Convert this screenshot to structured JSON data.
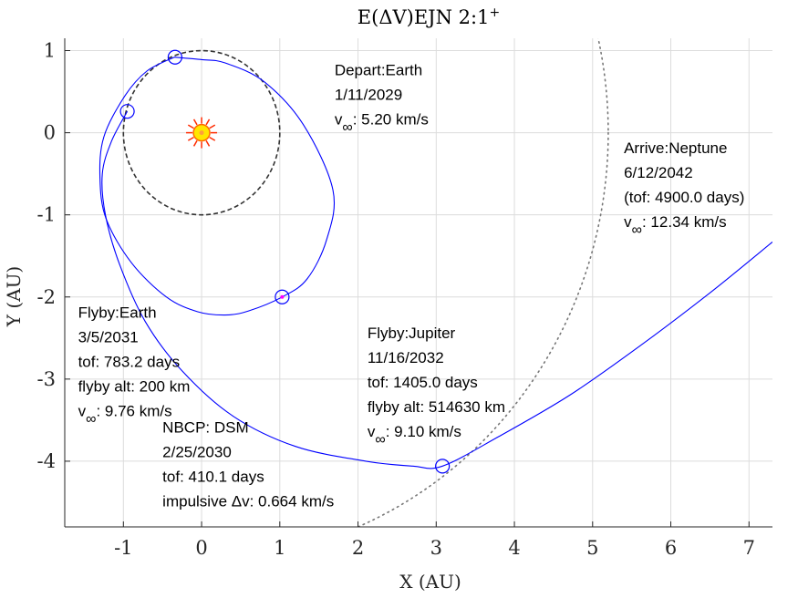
{
  "chart_data": {
    "type": "line",
    "title": "E(ΔV)EJN 2:1",
    "title_superscript": "+",
    "xlabel": "X (AU)",
    "ylabel": "Y (AU)",
    "xlim": [
      -1.75,
      7.3
    ],
    "ylim": [
      -4.8,
      1.15
    ],
    "xticks": [
      -1,
      0,
      1,
      2,
      3,
      4,
      5,
      6,
      7
    ],
    "yticks": [
      -4,
      -3,
      -2,
      -1,
      0,
      1
    ],
    "xticklabels": [
      "-1",
      "0",
      "1",
      "2",
      "3",
      "4",
      "5",
      "6",
      "7"
    ],
    "yticklabels": [
      "-4",
      "-3",
      "-2",
      "-1",
      "0",
      "1"
    ],
    "grid": true,
    "sun": {
      "x": 0,
      "y": 0
    },
    "earth_orbit": {
      "radius": 1.0,
      "style": "dashed",
      "color": "#333333"
    },
    "jupiter_orbit": {
      "radius": 5.2,
      "style": "dotted",
      "color": "#777777"
    },
    "trajectory_color": "#0000ff",
    "trajectory_leg1": [
      [
        -0.35,
        0.92
      ],
      [
        0.0,
        0.89
      ],
      [
        0.3,
        0.85
      ],
      [
        0.8,
        0.62
      ],
      [
        1.3,
        0.1
      ],
      [
        1.68,
        -0.7
      ],
      [
        1.6,
        -1.3
      ],
      [
        1.35,
        -1.78
      ],
      [
        1.03,
        -2.0
      ],
      [
        0.6,
        -2.17
      ],
      [
        0.3,
        -2.22
      ],
      [
        -0.05,
        -2.18
      ],
      [
        -0.45,
        -2.0
      ],
      [
        -0.9,
        -1.58
      ],
      [
        -1.22,
        -1.05
      ],
      [
        -1.3,
        -0.55
      ],
      [
        -1.25,
        -0.05
      ],
      [
        -0.98,
        0.45
      ],
      [
        -0.7,
        0.75
      ],
      [
        -0.35,
        0.92
      ]
    ],
    "trajectory_leg2": [
      [
        -0.95,
        0.26
      ],
      [
        -1.15,
        -0.1
      ],
      [
        -1.27,
        -0.5
      ],
      [
        -1.23,
        -1.0
      ],
      [
        -1.05,
        -1.6
      ],
      [
        -0.72,
        -2.3
      ],
      [
        -0.25,
        -2.9
      ],
      [
        0.4,
        -3.45
      ],
      [
        1.2,
        -3.82
      ],
      [
        2.1,
        -4.0
      ],
      [
        2.7,
        -4.06
      ],
      [
        3.08,
        -4.06
      ],
      [
        3.8,
        -3.7
      ],
      [
        4.7,
        -3.2
      ],
      [
        5.6,
        -2.6
      ],
      [
        6.5,
        -1.95
      ],
      [
        7.3,
        -1.33
      ]
    ],
    "markers": [
      {
        "name": "depart-earth",
        "x": -0.34,
        "y": 0.92
      },
      {
        "name": "flyby-earth",
        "x": -0.95,
        "y": 0.26
      },
      {
        "name": "dsm",
        "x": 1.03,
        "y": -2.0
      },
      {
        "name": "flyby-jupiter",
        "x": 3.08,
        "y": -4.06
      }
    ],
    "annotations": [
      {
        "name": "depart",
        "x": 1.7,
        "y": 0.7,
        "lines": [
          {
            "text": "Depart:Earth"
          },
          {
            "text": "1/11/2029"
          },
          {
            "text": "v",
            "sub": "∞",
            "rest": ": 5.20 km/s"
          }
        ]
      },
      {
        "name": "arrive",
        "x": 5.4,
        "y": -0.25,
        "lines": [
          {
            "text": "Arrive:Neptune"
          },
          {
            "text": "6/12/2042"
          },
          {
            "text": "(tof: 4900.0 days)"
          },
          {
            "text": "v",
            "sub": "∞",
            "rest": ": 12.34 km/s"
          }
        ]
      },
      {
        "name": "flyby-earth",
        "x": -1.58,
        "y": -2.25,
        "lines": [
          {
            "text": "Flyby:Earth"
          },
          {
            "text": "3/5/2031"
          },
          {
            "text": "tof: 783.2 days"
          },
          {
            "text": "flyby alt: 200 km"
          },
          {
            "text": "v",
            "sub": "∞",
            "rest": ": 9.76 km/s"
          }
        ]
      },
      {
        "name": "flyby-jupiter",
        "x": 2.12,
        "y": -2.5,
        "lines": [
          {
            "text": "Flyby:Jupiter"
          },
          {
            "text": "11/16/2032"
          },
          {
            "text": "tof: 1405.0 days"
          },
          {
            "text": "flyby alt: 514630 km"
          },
          {
            "text": "v",
            "sub": "∞",
            "rest": ": 9.10 km/s"
          }
        ]
      },
      {
        "name": "dsm",
        "x": -0.5,
        "y": -3.65,
        "lines": [
          {
            "text": "NBCP:  DSM"
          },
          {
            "text": "2/25/2030"
          },
          {
            "text": "tof: 410.1 days"
          },
          {
            "text": "impulsive Δv: 0.664 km/s"
          }
        ]
      }
    ]
  }
}
